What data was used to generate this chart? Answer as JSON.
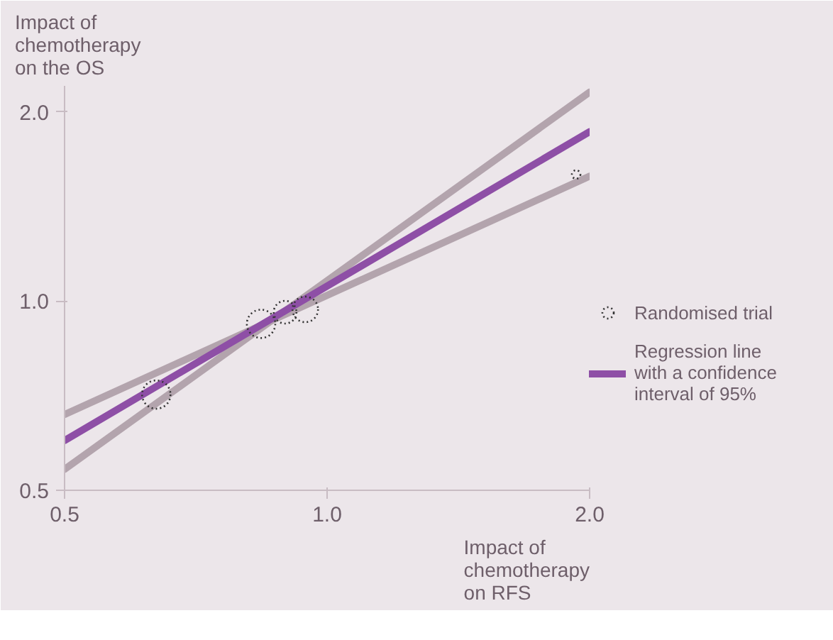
{
  "chart_data": {
    "type": "line",
    "xlabel": "Impact of chemotherapy on RFS",
    "ylabel": "Impact of chemotherapy on the OS",
    "log": "xy",
    "xlim": [
      0.5,
      2.0
    ],
    "ylim": [
      0.5,
      2.2
    ],
    "xticks": [
      0.5,
      {
        "value": 1,
        "label": "1.0"
      },
      {
        "value": 2,
        "label": "2.0"
      }
    ],
    "yticks": [
      0.5,
      {
        "value": 1,
        "label": "1.0"
      },
      {
        "value": 2,
        "label": "2.0"
      }
    ],
    "grid": false,
    "legend": "right",
    "series": [
      {
        "color": "#b3a4ad",
        "x": [
          0.5,
          2.0
        ],
        "values": [
          0.54,
          2.15
        ]
      },
      {
        "color": "#b3a4ad",
        "x": [
          0.5,
          2.0
        ],
        "values": [
          0.66,
          1.58
        ]
      },
      {
        "name": "Regression line with a confidence interval of 95%",
        "color": "#8e4fa6",
        "x": [
          0.5,
          2.0
        ],
        "values": [
          0.6,
          1.86
        ]
      },
      {
        "type": "bubble",
        "name": "Randomised trial",
        "color": "#333333",
        "x": [
          0.637,
          0.84,
          0.895,
          0.944,
          1.93
        ],
        "values": [
          0.71,
          0.92,
          0.96,
          0.97,
          1.59
        ],
        "sizes": [
          1,
          1,
          0.64,
          0.81,
          0.09
        ]
      }
    ]
  }
}
